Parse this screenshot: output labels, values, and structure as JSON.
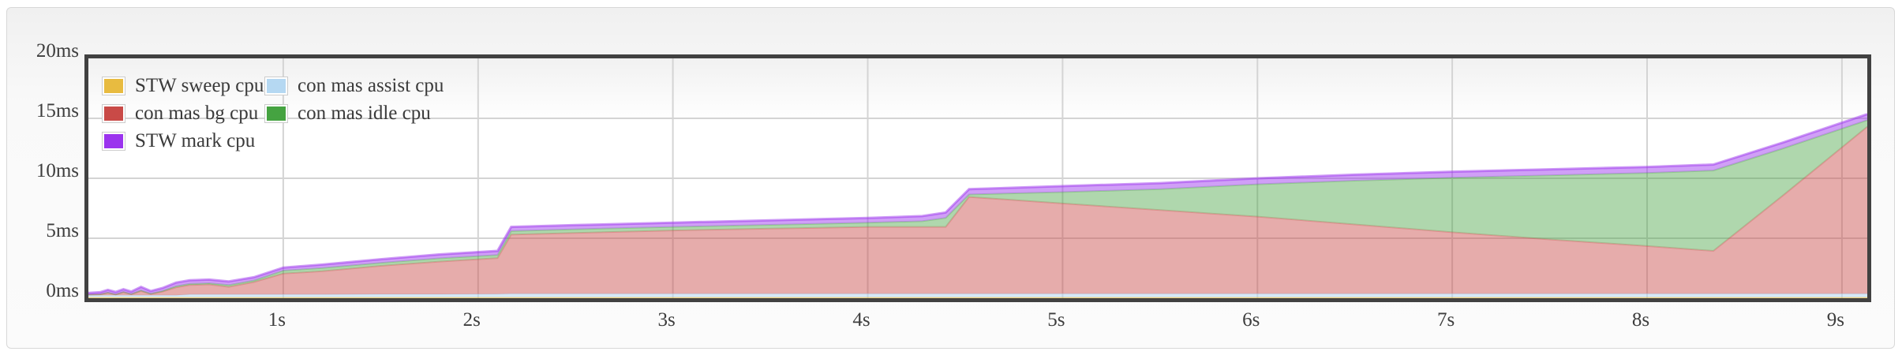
{
  "chart_data": {
    "type": "area",
    "stacked": true,
    "x_unit": "s",
    "y_unit": "ms",
    "xlim": [
      0,
      9.13
    ],
    "ylim": [
      0,
      20
    ],
    "grid": true,
    "legend_position": "top-left",
    "grid_color": "#d4d4d4",
    "frame_color": "#414141",
    "x_ticks": [
      {
        "t": 1,
        "label": "1s"
      },
      {
        "t": 2,
        "label": "2s"
      },
      {
        "t": 3,
        "label": "3s"
      },
      {
        "t": 4,
        "label": "4s"
      },
      {
        "t": 5,
        "label": "5s"
      },
      {
        "t": 6,
        "label": "6s"
      },
      {
        "t": 7,
        "label": "7s"
      },
      {
        "t": 8,
        "label": "8s"
      },
      {
        "t": 9,
        "label": "9s"
      }
    ],
    "y_ticks": [
      {
        "v": 0,
        "label": "0ms"
      },
      {
        "v": 5,
        "label": "5ms"
      },
      {
        "v": 10,
        "label": "10ms"
      },
      {
        "v": 15,
        "label": "15ms"
      },
      {
        "v": 20,
        "label": "20ms"
      }
    ],
    "x": [
      0,
      0.06,
      0.1,
      0.14,
      0.18,
      0.22,
      0.27,
      0.32,
      0.38,
      0.45,
      0.52,
      0.62,
      0.72,
      0.85,
      1,
      1.2,
      1.5,
      1.8,
      2.1,
      2.17,
      2.5,
      3,
      3.5,
      4,
      4.28,
      4.4,
      4.52,
      5,
      5.5,
      6,
      6.5,
      7,
      7.5,
      8,
      8.34,
      8.7,
      9.13
    ],
    "series": [
      {
        "name": "STW sweep cpu",
        "color": "#e8bb40",
        "fill_opacity": 0.55,
        "stroke_opacity": 0.4,
        "stroke_width": 1.5,
        "values": [
          0.07,
          0.07,
          0.07,
          0.07,
          0.07,
          0.07,
          0.07,
          0.07,
          0.07,
          0.07,
          0.07,
          0.07,
          0.07,
          0.07,
          0.07,
          0.07,
          0.07,
          0.07,
          0.07,
          0.07,
          0.07,
          0.07,
          0.07,
          0.07,
          0.07,
          0.07,
          0.07,
          0.07,
          0.07,
          0.07,
          0.07,
          0.07,
          0.07,
          0.07,
          0.07,
          0.07,
          0.07
        ]
      },
      {
        "name": "con mas assist cpu",
        "color": "#b5d8f2",
        "fill_opacity": 0.55,
        "stroke_opacity": 0.45,
        "stroke_width": 1.5,
        "values": [
          0.18,
          0.18,
          0.18,
          0.18,
          0.18,
          0.18,
          0.18,
          0.18,
          0.18,
          0.18,
          0.24,
          0.24,
          0.24,
          0.24,
          0.24,
          0.24,
          0.26,
          0.26,
          0.28,
          0.3,
          0.3,
          0.3,
          0.3,
          0.3,
          0.3,
          0.3,
          0.3,
          0.3,
          0.3,
          0.3,
          0.3,
          0.3,
          0.3,
          0.3,
          0.3,
          0.3,
          0.3
        ]
      },
      {
        "name": "con mas bg cpu",
        "color": "#c94a47",
        "fill_opacity": 0.46,
        "stroke_opacity": 0.3,
        "stroke_width": 2,
        "values": [
          0.05,
          0.07,
          0.2,
          0.05,
          0.25,
          0.08,
          0.35,
          0.1,
          0.3,
          0.65,
          0.79,
          0.84,
          0.64,
          1.04,
          1.74,
          1.94,
          2.37,
          2.72,
          3,
          4.93,
          5.08,
          5.28,
          5.43,
          5.58,
          5.58,
          5.58,
          8.08,
          7.53,
          6.98,
          6.43,
          5.78,
          5.13,
          4.53,
          3.98,
          3.58,
          8.23,
          13.93
        ]
      },
      {
        "name": "con mas idle cpu",
        "color": "#45a341",
        "fill_opacity": 0.43,
        "stroke_opacity": 0.3,
        "stroke_width": 2,
        "values": [
          0,
          0.01,
          0.02,
          0.02,
          0.02,
          0.02,
          0.05,
          0.03,
          0.05,
          0.1,
          0.1,
          0.1,
          0.15,
          0.13,
          0.25,
          0.27,
          0.25,
          0.27,
          0.25,
          0.3,
          0.3,
          0.3,
          0.32,
          0.35,
          0.47,
          0.75,
          0.2,
          0.95,
          1.75,
          2.7,
          3.65,
          4.55,
          5.35,
          6.1,
          6.7,
          3.9,
          0.55
        ]
      },
      {
        "name": "STW mark cpu",
        "color": "#9b33ee",
        "fill_opacity": 0.47,
        "stroke_opacity": 0.5,
        "stroke_width": 3,
        "values": [
          0.15,
          0.17,
          0.23,
          0.2,
          0.23,
          0.2,
          0.3,
          0.22,
          0.25,
          0.3,
          0.3,
          0.3,
          0.3,
          0.27,
          0.25,
          0.28,
          0.3,
          0.33,
          0.35,
          0.35,
          0.35,
          0.35,
          0.38,
          0.4,
          0.43,
          0.45,
          0.45,
          0.5,
          0.5,
          0.5,
          0.5,
          0.5,
          0.5,
          0.5,
          0.5,
          0.5,
          0.5
        ]
      }
    ],
    "legend": {
      "items": [
        {
          "label": "STW sweep cpu",
          "color": "#e8bb40"
        },
        {
          "label": "con mas bg cpu",
          "color": "#c94a47"
        },
        {
          "label": "STW mark cpu",
          "color": "#9b33ee"
        },
        {
          "label": "con mas assist cpu",
          "color": "#b5d8f2"
        },
        {
          "label": "con mas idle cpu",
          "color": "#45a341"
        }
      ]
    }
  }
}
